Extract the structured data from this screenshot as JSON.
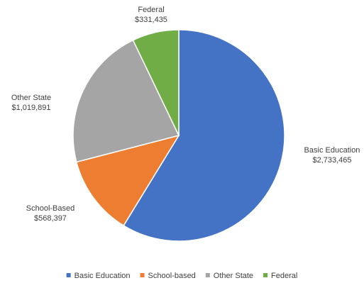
{
  "chart_data": {
    "type": "pie",
    "title": "",
    "slices": [
      {
        "name": "Basic Education",
        "data_label": "Basic Education",
        "value": 2733465,
        "value_label": "$2,733,465",
        "color": "#4472C4"
      },
      {
        "name": "School-based",
        "data_label": "School-Based",
        "value": 568397,
        "value_label": "$568,397",
        "color": "#ED7D31"
      },
      {
        "name": "Other State",
        "data_label": "Other State",
        "value": 1019891,
        "value_label": "$1,019,891",
        "color": "#A5A5A5"
      },
      {
        "name": "Federal",
        "data_label": "Federal",
        "value": 331435,
        "value_label": "$331,435",
        "color": "#70AD47"
      }
    ],
    "start_angle": "12 o'clock",
    "direction": "clockwise",
    "legend": {
      "placement": "bottom",
      "entries": [
        "Basic Education",
        "School-based",
        "Other State",
        "Federal"
      ]
    },
    "slice_border_color": "#FFFFFF",
    "text_color": "#404040"
  }
}
